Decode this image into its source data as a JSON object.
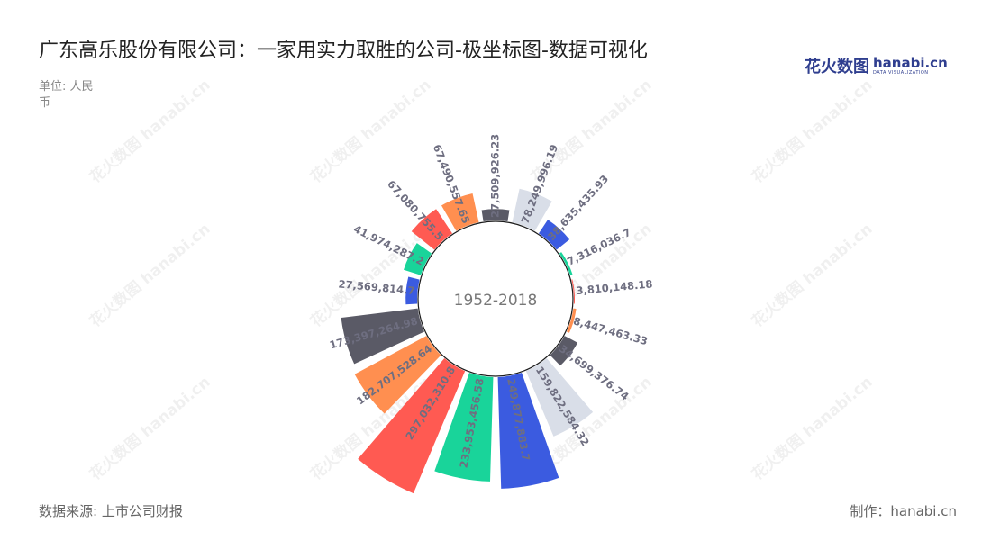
{
  "title": "广东高乐股份有限公司：一家用实力取胜的公司-极坐标图-数据可视化",
  "unit_label": "单位: 人民币",
  "source": "数据来源: 上市公司财报",
  "maker": "制作：hanabi.cn",
  "logo": {
    "cn": "花火数图",
    "en": "hanabi.cn",
    "sub": "DATA VISUALIZATION"
  },
  "watermark_text": "花火数图 hanabi.cn",
  "chart_data": {
    "type": "bar",
    "polar": true,
    "center_label": "1952-2018",
    "rmax": 300000000,
    "labels": [
      "27,509,926.23",
      "78,249,996.19",
      "38,635,435.93",
      "7,316,036.7",
      "3,810,148.18",
      "8,447,463.33",
      "34,699,376.74",
      "159,822,584.32",
      "249,877,883.7",
      "233,953,456.58",
      "297,032,310.8",
      "182,707,528.64",
      "173,397,264.98",
      "27,569,814.7",
      "41,974,287.2",
      "67,080,755.5",
      "67,490,557.65"
    ],
    "values": [
      27509926.23,
      78249996.19,
      38635435.93,
      7316036.7,
      3810148.18,
      8447463.33,
      34699376.74,
      159822584.32,
      249877883.7,
      233953456.58,
      297032310.8,
      182707528.64,
      173397264.98,
      27569814.7,
      41974287.2,
      67080755.5,
      67490557.65
    ],
    "colors": [
      "#5a5a66",
      "#d9dee8",
      "#3b5be0",
      "#19d49a",
      "#ff5a52",
      "#ff8f50",
      "#5a5a66",
      "#d9dee8",
      "#3b5be0",
      "#19d49a",
      "#ff5a52",
      "#ff8f50",
      "#5a5a66",
      "#3b5be0",
      "#19d49a",
      "#ff5a52",
      "#ff8f50"
    ],
    "label_color": "#6e6e80"
  }
}
